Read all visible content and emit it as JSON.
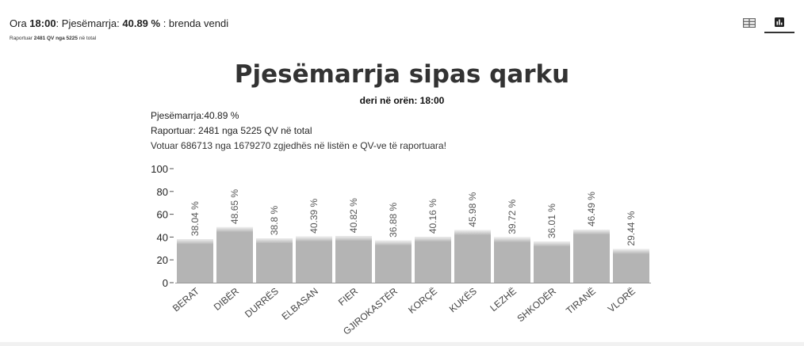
{
  "header": {
    "time_prefix": "Ora",
    "time_value": "18:00",
    "turnout_prefix": ": Pjesëmarrja:",
    "turnout_value": "40.89 %",
    "turnout_suffix": ": brenda vendi",
    "reported_prefix": "Raportuar",
    "reported_value": "2481 QV nga 5225",
    "reported_suffix": "në total"
  },
  "view_toggle": {
    "table_icon": "table-icon",
    "chart_icon": "bar-chart-icon",
    "active": "chart"
  },
  "stats": {
    "turnout": "Pjesëmarrja:40.89 %",
    "reported": "Raportuar: 2481 nga 5225 QV në total",
    "voted": "Votuar 686713 nga 1679270 zgjedhës në listën e QV-ve të raportuara!"
  },
  "colors": {
    "bar": "#b4b4b4",
    "bar_top": "#e6e6e6",
    "axis": "#555555"
  },
  "chart_data": {
    "type": "bar",
    "title": "Pjesëmarrja sipas qarku",
    "subtitle": "deri në orën: 18:00",
    "categories": [
      "BERAT",
      "DIBËR",
      "DURRËS",
      "ELBASAN",
      "FIER",
      "GJIROKASTËR",
      "KORÇË",
      "KUKËS",
      "LEZHË",
      "SHKODËR",
      "TIRANË",
      "VLORË"
    ],
    "values": [
      38.04,
      48.65,
      38.8,
      40.39,
      40.82,
      36.88,
      40.16,
      45.98,
      39.72,
      36.01,
      46.49,
      29.44
    ],
    "data_labels": [
      "38.04 %",
      "48.65 %",
      "38.8 %",
      "40.39 %",
      "40.82 %",
      "36.88 %",
      "40.16 %",
      "45.98 %",
      "39.72 %",
      "36.01 %",
      "46.49 %",
      "29.44 %"
    ],
    "y_ticks": [
      0,
      20,
      40,
      60,
      80,
      100
    ],
    "ylim": [
      0,
      100
    ],
    "grid": false,
    "legend": "none"
  }
}
